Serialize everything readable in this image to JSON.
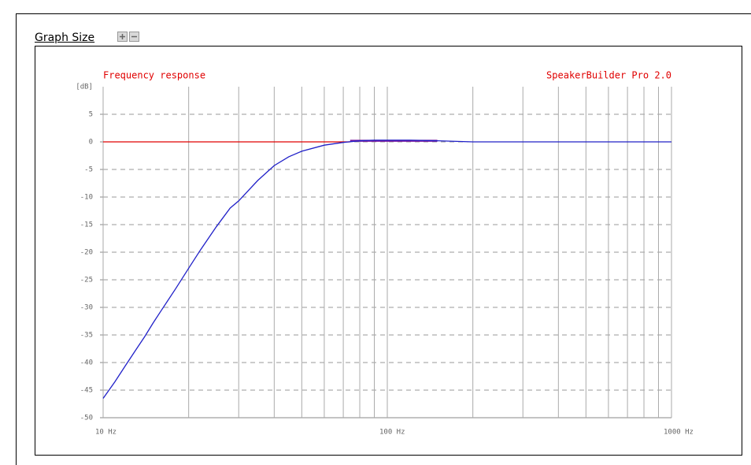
{
  "graph_size_label": "Graph Size",
  "chart_data": {
    "type": "line",
    "title": "Frequency response",
    "subtitle": "SpeakerBuilder Pro 2.0",
    "y_label": "[dB]",
    "xlog": true,
    "xlim": [
      10,
      1000
    ],
    "xticks": [
      {
        "value": 10,
        "label": "10 Hz"
      },
      {
        "value": 100,
        "label": "100 Hz"
      },
      {
        "value": 1000,
        "label": "1000 Hz"
      }
    ],
    "x_minor_grid": [
      20,
      30,
      40,
      50,
      60,
      70,
      80,
      90,
      200,
      300,
      400,
      500,
      600,
      700,
      800,
      900
    ],
    "ylim": [
      -50,
      10
    ],
    "yticks": [
      -50,
      -45,
      -40,
      -35,
      -30,
      -25,
      -20,
      -15,
      -10,
      -5,
      0,
      5
    ],
    "grid": true,
    "series": [
      {
        "color": "#e00000",
        "x": [
          10,
          74
        ],
        "values": [
          0,
          0
        ]
      },
      {
        "color": "#7a1aa0",
        "x": [
          74,
          150
        ],
        "values": [
          0.2,
          0.2
        ]
      },
      {
        "color": "#2020c8",
        "x": [
          10,
          11,
          12,
          13,
          14,
          15,
          16,
          18,
          20,
          22,
          25,
          28,
          30,
          35,
          40,
          45,
          50,
          60,
          70,
          80,
          90,
          100,
          120,
          150,
          200,
          300,
          500,
          1000
        ],
        "values": [
          -46.5,
          -43.5,
          -40.5,
          -37.8,
          -35.3,
          -32.8,
          -30.6,
          -26.6,
          -22.9,
          -19.6,
          -15.4,
          -12,
          -10.7,
          -7,
          -4.3,
          -2.7,
          -1.7,
          -0.6,
          -0.1,
          0.2,
          0.3,
          0.3,
          0.3,
          0.2,
          0,
          0,
          0,
          0
        ]
      }
    ]
  }
}
